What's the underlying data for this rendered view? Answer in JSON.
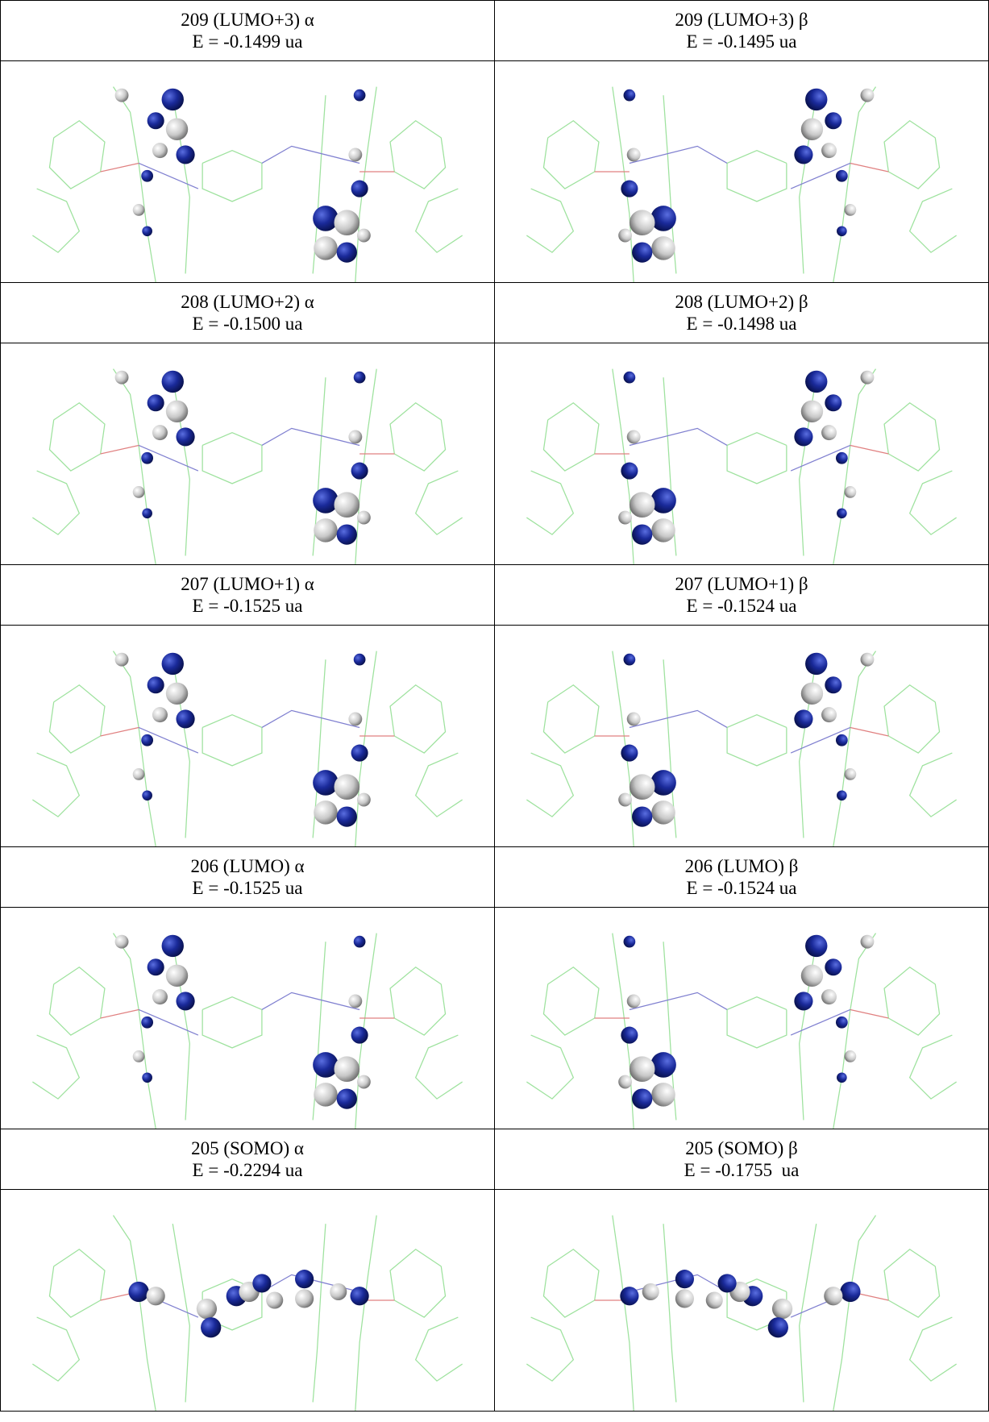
{
  "table": {
    "rows": [
      {
        "alpha": {
          "label": "209 (LUMO+3) α",
          "energy": "E = -0.1499 ua"
        },
        "beta": {
          "label": "209 (LUMO+3) β",
          "energy": "E = -0.1495 ua"
        }
      },
      {
        "alpha": {
          "label": "208 (LUMO+2) α",
          "energy": "E = -0.1500 ua"
        },
        "beta": {
          "label": "208 (LUMO+2) β",
          "energy": "E = -0.1498 ua"
        }
      },
      {
        "alpha": {
          "label": "207 (LUMO+1) α",
          "energy": "E = -0.1525 ua"
        },
        "beta": {
          "label": "207 (LUMO+1) β",
          "energy": "E = -0.1524 ua"
        }
      },
      {
        "alpha": {
          "label": "206 (LUMO) α",
          "energy": "E = -0.1525 ua"
        },
        "beta": {
          "label": "206 (LUMO) β",
          "energy": "E = -0.1524 ua"
        }
      },
      {
        "alpha": {
          "label": "205 (SOMO) α",
          "energy": "E = -0.2294 ua"
        },
        "beta": {
          "label": "205 (SOMO) β",
          "energy": "E = -0.1755  ua"
        }
      }
    ]
  }
}
